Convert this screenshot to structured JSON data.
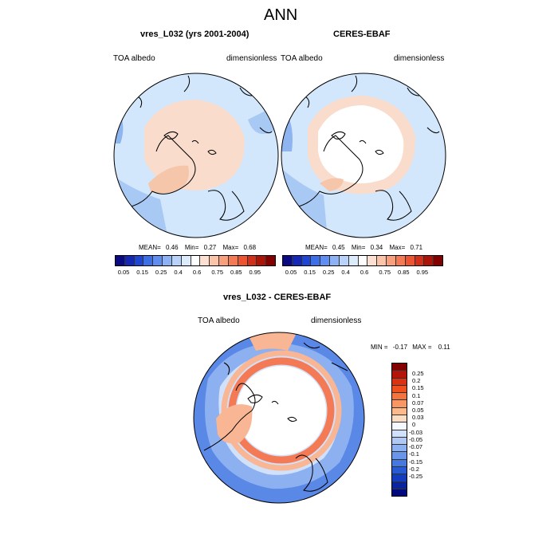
{
  "title": "ANN",
  "left_panel": {
    "title": "vres_L032 (yrs 2001-2004)",
    "variable": "TOA albedo",
    "units": "dimensionless",
    "mean_label": "MEAN=",
    "mean": "0.46",
    "min_label": "Min=",
    "min": "0.27",
    "max_label": "Max=",
    "max": "0.68"
  },
  "right_panel": {
    "title": "CERES-EBAF",
    "variable": "TOA albedo",
    "units": "dimensionless",
    "mean_label": "MEAN=",
    "mean": "0.45",
    "min_label": "Min=",
    "min": "0.34",
    "max_label": "Max=",
    "max": "0.71"
  },
  "diff_panel": {
    "title": "vres_L032 - CERES-EBAF",
    "variable": "TOA albedo",
    "units": "dimensionless",
    "min_label": "MIN =",
    "min": "-0.17",
    "max_label": "MAX =",
    "max": "0.11"
  },
  "colorbar_abs": {
    "ticks": [
      "0.05",
      "0.15",
      "0.25",
      "0.4",
      "0.6",
      "0.75",
      "0.85",
      "0.95"
    ],
    "colors": [
      "#0a0a82",
      "#1428b4",
      "#1e46d2",
      "#3c6ee6",
      "#5f8ef0",
      "#8cb2f5",
      "#b9d2fa",
      "#dcebfc",
      "#ffffff",
      "#fde0d2",
      "#fbc3a8",
      "#f8a07e",
      "#f47a55",
      "#ec5432",
      "#d22e19",
      "#aa1409",
      "#820000"
    ]
  },
  "colorbar_diff": {
    "ticks": [
      "0.25",
      "0.2",
      "0.15",
      "0.1",
      "0.07",
      "0.05",
      "0.03",
      "0",
      "-0.03",
      "-0.05",
      "-0.07",
      "-0.1",
      "-0.15",
      "-0.2",
      "-0.25"
    ],
    "colors": [
      "#820000",
      "#b4140a",
      "#dc3214",
      "#f0501e",
      "#f5733c",
      "#f89664",
      "#fbb98c",
      "#fddcc4",
      "#f5f8ff",
      "#d2e1fa",
      "#afc8f5",
      "#8cb0f0",
      "#6995ea",
      "#4678e1",
      "#285ad2",
      "#143cbe",
      "#0a24a0",
      "#000a7d"
    ]
  },
  "map_colors": {
    "ocean_abs": "#d2e6fc",
    "ocean_abs_mid": "#a9c9f5",
    "ocean_abs_low": "#8eb5f0",
    "arctic_warm": "#f9dccb",
    "arctic_white": "#ffffff",
    "greenland": "#f6c6aa",
    "diff_low": "#5a88e6",
    "diff_mid": "#8cb0f0",
    "diff_warm": "#f8b694",
    "diff_warm2": "#f47a55",
    "coast": "#000000"
  }
}
